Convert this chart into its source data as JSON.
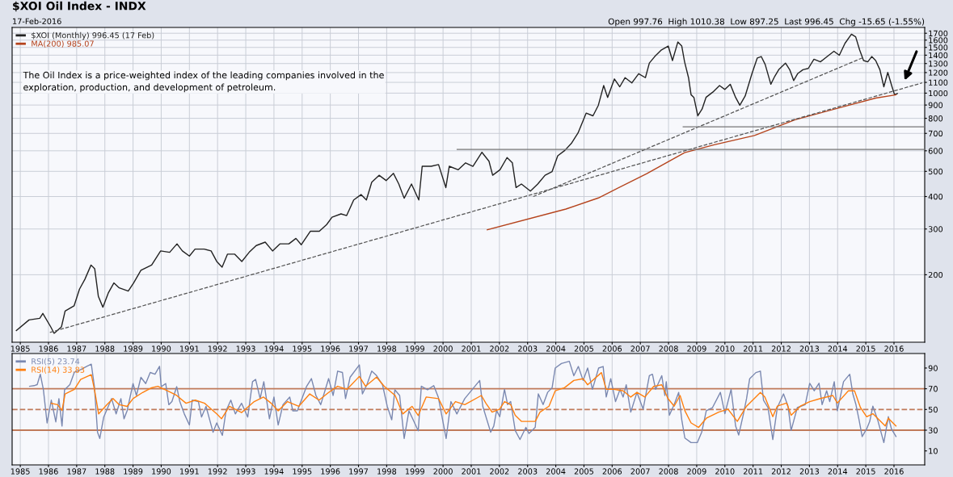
{
  "chart_data": [
    {
      "type": "line",
      "title": "$XOI Oil Index - INDX",
      "subtitle": "17-Feb-2016",
      "annotations": [
        "Open 997.76  High 1010.38  Low 897.25  Last 996.45  Chg -15.65 (-1.55%)",
        "The Oil Index is a price-weighted index of the leading companies involved in the exploration, production, and development of petroleum."
      ],
      "xlim": [
        1984.71,
        2017.09
      ],
      "xticks": [
        1985,
        1986,
        1987,
        1988,
        1989,
        1990,
        1991,
        1992,
        1993,
        1994,
        1995,
        1996,
        1997,
        1998,
        1999,
        2000,
        2001,
        2002,
        2003,
        2004,
        2005,
        2006,
        2007,
        2008,
        2009,
        2010,
        2011,
        2012,
        2013,
        2014,
        2015,
        2016
      ],
      "ylim": [
        110,
        1790
      ],
      "yticks": [
        200,
        300,
        400,
        500,
        600,
        700,
        800,
        900,
        1000,
        1100,
        1200,
        1300,
        1400,
        1500,
        1600,
        1700
      ],
      "log": true,
      "grid": true,
      "legend": "top left",
      "series": [
        {
          "name": "$XOI (Monthly) 996.45 (17 Feb)",
          "color": "#222222",
          "line_style": "solid",
          "x": [
            1984.86,
            1985.31,
            1985.69,
            1985.8,
            1986.08,
            1986.2,
            1986.46,
            1986.59,
            1986.91,
            1987.1,
            1987.29,
            1987.51,
            1987.64,
            1987.77,
            1987.93,
            1988.12,
            1988.32,
            1988.51,
            1988.83,
            1989.02,
            1989.28,
            1989.66,
            1989.98,
            1990.3,
            1990.56,
            1990.75,
            1991.0,
            1991.2,
            1991.52,
            1991.77,
            1991.97,
            1992.16,
            1992.35,
            1992.61,
            1992.86,
            1993.12,
            1993.37,
            1993.69,
            1993.95,
            1994.21,
            1994.53,
            1994.78,
            1994.97,
            1995.29,
            1995.61,
            1995.87,
            1996.06,
            1996.38,
            1996.58,
            1996.83,
            1997.09,
            1997.28,
            1997.47,
            1997.73,
            1997.98,
            1998.24,
            1998.43,
            1998.62,
            1998.88,
            1999.14,
            1999.26,
            1999.58,
            1999.84,
            2000.1,
            2000.22,
            2000.54,
            2000.8,
            2001.06,
            2001.38,
            2001.63,
            2001.76,
            2002.02,
            2002.27,
            2002.46,
            2002.59,
            2002.78,
            2003.1,
            2003.36,
            2003.62,
            2003.87,
            2004.07,
            2004.32,
            2004.55,
            2004.79,
            2005.08,
            2005.32,
            2005.51,
            2005.7,
            2005.84,
            2006.08,
            2006.27,
            2006.46,
            2006.7,
            2006.94,
            2007.18,
            2007.32,
            2007.51,
            2007.75,
            2007.99,
            2008.14,
            2008.33,
            2008.47,
            2008.57,
            2008.71,
            2008.8,
            2008.9,
            2009.04,
            2009.19,
            2009.33,
            2009.57,
            2009.81,
            2010.0,
            2010.19,
            2010.38,
            2010.53,
            2010.72,
            2010.96,
            2011.15,
            2011.29,
            2011.43,
            2011.63,
            2011.77,
            2011.91,
            2012.15,
            2012.3,
            2012.44,
            2012.58,
            2012.77,
            2012.96,
            2013.16,
            2013.39,
            2013.63,
            2013.87,
            2014.06,
            2014.26,
            2014.49,
            2014.64,
            2014.78,
            2014.92,
            2015.07,
            2015.21,
            2015.35,
            2015.5,
            2015.64,
            2015.78,
            2015.93,
            2016.02,
            2016.12
          ],
          "values": [
            122,
            134,
            136,
            142,
            126,
            119,
            126,
            145,
            152,
            176,
            192,
            218,
            211,
            165,
            150,
            170,
            186,
            178,
            173,
            186,
            208,
            218,
            247,
            244,
            263,
            247,
            236,
            251,
            251,
            247,
            225,
            214,
            240,
            240,
            225,
            244,
            259,
            267,
            247,
            263,
            263,
            276,
            261,
            294,
            294,
            312,
            333,
            343,
            338,
            388,
            407,
            388,
            454,
            483,
            461,
            491,
            447,
            394,
            447,
            388,
            523,
            523,
            531,
            433,
            523,
            507,
            539,
            523,
            592,
            547,
            483,
            507,
            565,
            539,
            433,
            447,
            420,
            447,
            483,
            499,
            574,
            602,
            640,
            703,
            838,
            818,
            898,
            1070,
            963,
            1134,
            1058,
            1147,
            1095,
            1188,
            1147,
            1305,
            1383,
            1467,
            1518,
            1335,
            1573,
            1518,
            1320,
            1147,
            986,
            963,
            818,
            868,
            963,
            1009,
            1070,
            1033,
            1082,
            963,
            898,
            975,
            1188,
            1366,
            1383,
            1289,
            1082,
            1161,
            1231,
            1305,
            1231,
            1118,
            1188,
            1231,
            1245,
            1351,
            1320,
            1383,
            1449,
            1399,
            1554,
            1686,
            1647,
            1467,
            1335,
            1320,
            1383,
            1335,
            1231,
            1058,
            1201,
            1058,
            986,
            996.45
          ]
        },
        {
          "name": "MA(200) 985.07",
          "color": "#b5431c",
          "line_style": "solid",
          "x": [
            2001.57,
            2004.36,
            2005.51,
            2007.23,
            2008.57,
            2009.62,
            2011.05,
            2012.49,
            2014.4,
            2015.35,
            2016.07
          ],
          "values": [
            298,
            358,
            395,
            490,
            590,
            633,
            687,
            790,
            898,
            957,
            985.07
          ]
        },
        {
          "color": "#555555",
          "line_style": "dashed",
          "x": [
            1986.05,
            2017.0
          ],
          "values": [
            120,
            1095
          ]
        },
        {
          "color": "#555555",
          "line_style": "dashed",
          "x": [
            2003.2,
            2014.9
          ],
          "values": [
            400,
            1370
          ]
        },
        {
          "color": "#777777",
          "line_style": "solid",
          "x": [
            2000.5,
            2017.09
          ],
          "values": [
            607,
            607
          ]
        },
        {
          "color": "#777777",
          "line_style": "solid",
          "x": [
            2008.52,
            2017.09
          ],
          "values": [
            742,
            742
          ]
        }
      ]
    },
    {
      "type": "line",
      "xlim": [
        1984.71,
        2017.09
      ],
      "xticks": [
        1985,
        1986,
        1987,
        1988,
        1989,
        1990,
        1991,
        1992,
        1993,
        1994,
        1995,
        1996,
        1997,
        1998,
        1999,
        2000,
        2001,
        2002,
        2003,
        2004,
        2005,
        2006,
        2007,
        2008,
        2009,
        2010,
        2011,
        2012,
        2013,
        2014,
        2015,
        2016
      ],
      "ylim": [
        -3.5,
        104
      ],
      "yticks": [
        10,
        30,
        50,
        70,
        90
      ],
      "grid": "x",
      "legend": "top left",
      "ref_lines": [
        {
          "axis": "y",
          "value": 70,
          "color": "#c07a5a",
          "line_style": "solid"
        },
        {
          "axis": "y",
          "value": 50,
          "color": "#c07a5a",
          "line_style": "dashed"
        },
        {
          "axis": "y",
          "value": 30,
          "color": "#c07a5a",
          "line_style": "solid"
        }
      ],
      "series": [
        {
          "name": "RSI(5) 23.74",
          "color": "#7a88b0",
          "line_style": "solid",
          "x": [
            1985.33,
            1985.49,
            1985.6,
            1985.71,
            1985.82,
            1985.95,
            1986.1,
            1986.26,
            1986.37,
            1986.48,
            1986.57,
            1986.76,
            1986.92,
            1987.03,
            1987.16,
            1987.36,
            1987.52,
            1987.63,
            1987.74,
            1987.82,
            1987.96,
            1988.24,
            1988.4,
            1988.57,
            1988.68,
            1988.79,
            1989.0,
            1989.12,
            1989.28,
            1989.45,
            1989.61,
            1989.78,
            1989.94,
            1990.0,
            1990.16,
            1990.27,
            1990.38,
            1990.55,
            1990.66,
            1990.82,
            1991.0,
            1991.1,
            1991.32,
            1991.43,
            1991.59,
            1991.84,
            1991.97,
            1992.17,
            1992.3,
            1992.47,
            1992.63,
            1992.85,
            1993.07,
            1993.24,
            1993.35,
            1993.51,
            1993.64,
            1993.84,
            1994.0,
            1994.15,
            1994.32,
            1994.56,
            1994.67,
            1994.83,
            1995.16,
            1995.33,
            1995.49,
            1995.66,
            1995.94,
            1996.1,
            1996.26,
            1996.43,
            1996.54,
            1996.7,
            1997.03,
            1997.14,
            1997.3,
            1997.47,
            1997.64,
            1997.85,
            1998.02,
            1998.18,
            1998.29,
            1998.46,
            1998.62,
            1998.79,
            1999.12,
            1999.23,
            1999.45,
            1999.67,
            1999.83,
            2000.11,
            2000.28,
            2000.49,
            2000.77,
            2001.3,
            2001.41,
            2001.69,
            2001.8,
            2001.9,
            2002.01,
            2002.18,
            2002.29,
            2002.4,
            2002.56,
            2002.73,
            2002.94,
            2003.05,
            2003.27,
            2003.38,
            2003.55,
            2003.71,
            2003.87,
            2003.98,
            2004.2,
            2004.48,
            2004.64,
            2004.8,
            2004.97,
            2005.13,
            2005.3,
            2005.52,
            2005.68,
            2005.79,
            2005.95,
            2006.12,
            2006.28,
            2006.39,
            2006.5,
            2006.66,
            2006.88,
            2007.1,
            2007.32,
            2007.43,
            2007.54,
            2007.76,
            2007.87,
            2007.92,
            2008.03,
            2008.2,
            2008.36,
            2008.47,
            2008.58,
            2008.8,
            2009.02,
            2009.18,
            2009.34,
            2009.56,
            2009.84,
            2010.0,
            2010.22,
            2010.38,
            2010.49,
            2010.66,
            2010.77,
            2010.88,
            2011.1,
            2011.26,
            2011.37,
            2011.53,
            2011.7,
            2011.86,
            2012.08,
            2012.24,
            2012.35,
            2012.57,
            2012.85,
            2013.01,
            2013.17,
            2013.34,
            2013.45,
            2013.61,
            2013.72,
            2013.88,
            2013.99,
            2014.21,
            2014.43,
            2014.54,
            2014.65,
            2014.76,
            2014.87,
            2015.03,
            2015.14,
            2015.25,
            2015.42,
            2015.64,
            2015.8,
            2015.91,
            2016.07
          ],
          "values": [
            72.4,
            73,
            74,
            84,
            69,
            37,
            59,
            38,
            60.5,
            34,
            69,
            74,
            86,
            87,
            88.7,
            91.6,
            93.7,
            72,
            28,
            22,
            42.7,
            60.5,
            45.7,
            60.5,
            41,
            48.7,
            75,
            63.5,
            81,
            75,
            85.7,
            84,
            91.6,
            72,
            75,
            54.6,
            57.6,
            72,
            57.6,
            45.7,
            35,
            59,
            57.6,
            42.7,
            53,
            28,
            37,
            25,
            48.7,
            59,
            45.7,
            56,
            42.7,
            76.8,
            79,
            60.5,
            76.8,
            41,
            62,
            35,
            54.6,
            62,
            48.7,
            48.7,
            72.4,
            79.8,
            63.5,
            54.6,
            79.8,
            63.5,
            87,
            85.7,
            60.5,
            81,
            93,
            65,
            74,
            87,
            82.7,
            74,
            53,
            40,
            69,
            63.5,
            22,
            48.7,
            29.4,
            72.4,
            69,
            73,
            62,
            22,
            57.6,
            45.7,
            60.5,
            78,
            53,
            28,
            34,
            49,
            43,
            69.4,
            54.7,
            57.6,
            29.7,
            21,
            32.7,
            26.8,
            32.7,
            65,
            54.7,
            66.5,
            71,
            90,
            94.4,
            96.5,
            82.6,
            91.5,
            78,
            90,
            69.4,
            90,
            91.5,
            62,
            79.7,
            57.6,
            69.4,
            62,
            73.8,
            47.4,
            66.5,
            50.3,
            82.6,
            84,
            69.4,
            82.6,
            63.5,
            76.8,
            44.4,
            54.7,
            66.5,
            40,
            22.4,
            18,
            18,
            28.3,
            48.8,
            51.8,
            66.5,
            45.9,
            69.4,
            34.1,
            25.3,
            45.9,
            60.6,
            79.7,
            85.6,
            87,
            59,
            51.8,
            21,
            51.8,
            65,
            53.2,
            29.7,
            51.8,
            54.7,
            75.3,
            68,
            75.3,
            54.7,
            68,
            57.6,
            76.8,
            48.8,
            76.8,
            84,
            65,
            54.7,
            40,
            23.8,
            31.2,
            38.5,
            53.2,
            40,
            18,
            43,
            31.2,
            24
          ]
        },
        {
          "name": "RSI(14) 33.83",
          "color": "#ff7f0e",
          "line_style": "solid",
          "x": [
            1986.1,
            1986.32,
            1986.48,
            1986.59,
            1986.92,
            1987.14,
            1987.52,
            1987.63,
            1987.78,
            1988.07,
            1988.29,
            1988.51,
            1988.79,
            1989.0,
            1989.34,
            1989.66,
            1989.88,
            1990.22,
            1990.55,
            1990.88,
            1991.21,
            1991.54,
            1991.97,
            1992.14,
            1992.42,
            1992.85,
            1993.3,
            1993.63,
            1993.9,
            1994.15,
            1994.48,
            1994.88,
            1995.27,
            1995.6,
            1995.94,
            1996.26,
            1996.59,
            1997.03,
            1997.25,
            1997.64,
            1997.91,
            1998.3,
            1998.57,
            1998.9,
            1999.12,
            1999.4,
            1999.84,
            2000.11,
            2000.44,
            2000.77,
            2001.36,
            2001.52,
            2001.74,
            2002.01,
            2002.18,
            2002.4,
            2002.56,
            2002.78,
            2003.11,
            2003.27,
            2003.44,
            2003.76,
            2003.98,
            2004.31,
            2004.64,
            2004.97,
            2005.13,
            2005.62,
            2005.79,
            2006.06,
            2006.39,
            2006.66,
            2006.88,
            2007.16,
            2007.48,
            2007.76,
            2007.98,
            2008.2,
            2008.41,
            2008.58,
            2008.8,
            2009.07,
            2009.34,
            2009.78,
            2010.11,
            2010.44,
            2010.77,
            2011.26,
            2011.42,
            2011.7,
            2011.86,
            2012.19,
            2012.35,
            2012.68,
            2013.01,
            2013.39,
            2013.83,
            2013.99,
            2014.38,
            2014.6,
            2014.81,
            2015.03,
            2015.25,
            2015.69,
            2015.8,
            2016.07
          ],
          "values": [
            56,
            54.6,
            49,
            65,
            69.4,
            79,
            83.6,
            69.4,
            45.7,
            54.6,
            60.5,
            54.6,
            53,
            60.5,
            66.4,
            70.9,
            72.4,
            68,
            63.5,
            56,
            59,
            56,
            45.7,
            41,
            53,
            47,
            57.6,
            62,
            56,
            48.7,
            57.6,
            53,
            65,
            59,
            66.4,
            72.4,
            69.4,
            81.9,
            72.4,
            81.2,
            72.4,
            63.5,
            45.7,
            53,
            44.2,
            62,
            60.5,
            45.7,
            57.6,
            54.6,
            63.5,
            56,
            47.4,
            50.3,
            57.6,
            54.7,
            44.4,
            38.5,
            38.5,
            38.5,
            47.4,
            53.2,
            68,
            71,
            78,
            79.7,
            73.8,
            85.6,
            69.4,
            69.4,
            68,
            62,
            66.5,
            62,
            72.4,
            73.8,
            60.6,
            53.2,
            63.5,
            48.8,
            37,
            32.7,
            41.5,
            47.4,
            50.3,
            38.5,
            53.2,
            66.5,
            62,
            43,
            53.2,
            56.2,
            44.4,
            53.2,
            57.6,
            60.6,
            63.5,
            56.2,
            68,
            68,
            51.8,
            43,
            45.9,
            34.1,
            41.5,
            34
          ]
        }
      ]
    }
  ]
}
